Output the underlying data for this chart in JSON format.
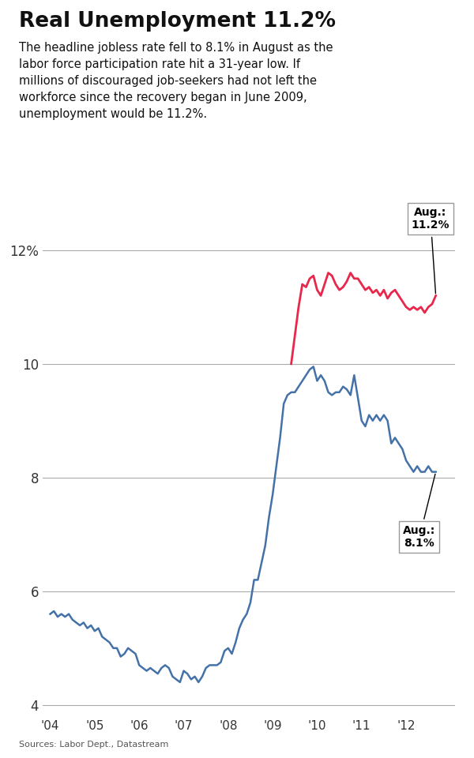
{
  "title": "Real Unemployment 11.2%",
  "subtitle": "The headline jobless rate fell to 8.1% in August as the\nlabor force participation rate hit a 31-year low. If\nmillions of discouraged job-seekers had not left the\nworkforce since the recovery began in June 2009,\nunemployment would be 11.2%.",
  "source": "Sources: Labor Dept., Datastream",
  "ylim": [
    3.8,
    13.0
  ],
  "yticks": [
    4,
    6,
    8,
    10,
    12
  ],
  "ytick_labels": [
    "4",
    "6",
    "8",
    "10",
    "12%"
  ],
  "xlabel_years": [
    "'04",
    "'05",
    "'06",
    "'07",
    "'08",
    "'09",
    "'10",
    "'11",
    "'12"
  ],
  "blue_color": "#4472A8",
  "red_color": "#E8274B",
  "background_color": "#FFFFFF",
  "blue_data": {
    "dates": [
      2004.0,
      2004.083,
      2004.167,
      2004.25,
      2004.333,
      2004.417,
      2004.5,
      2004.583,
      2004.667,
      2004.75,
      2004.833,
      2004.917,
      2005.0,
      2005.083,
      2005.167,
      2005.25,
      2005.333,
      2005.417,
      2005.5,
      2005.583,
      2005.667,
      2005.75,
      2005.833,
      2005.917,
      2006.0,
      2006.083,
      2006.167,
      2006.25,
      2006.333,
      2006.417,
      2006.5,
      2006.583,
      2006.667,
      2006.75,
      2006.833,
      2006.917,
      2007.0,
      2007.083,
      2007.167,
      2007.25,
      2007.333,
      2007.417,
      2007.5,
      2007.583,
      2007.667,
      2007.75,
      2007.833,
      2007.917,
      2008.0,
      2008.083,
      2008.167,
      2008.25,
      2008.333,
      2008.417,
      2008.5,
      2008.583,
      2008.667,
      2008.75,
      2008.833,
      2008.917,
      2009.0,
      2009.083,
      2009.167,
      2009.25,
      2009.333,
      2009.417,
      2009.5,
      2009.583,
      2009.667,
      2009.75,
      2009.833,
      2009.917,
      2010.0,
      2010.083,
      2010.167,
      2010.25,
      2010.333,
      2010.417,
      2010.5,
      2010.583,
      2010.667,
      2010.75,
      2010.833,
      2010.917,
      2011.0,
      2011.083,
      2011.167,
      2011.25,
      2011.333,
      2011.417,
      2011.5,
      2011.583,
      2011.667,
      2011.75,
      2011.833,
      2011.917,
      2012.0,
      2012.083,
      2012.167,
      2012.25,
      2012.333,
      2012.417,
      2012.5,
      2012.583,
      2012.667
    ],
    "values": [
      5.6,
      5.65,
      5.55,
      5.6,
      5.55,
      5.6,
      5.5,
      5.45,
      5.4,
      5.45,
      5.35,
      5.4,
      5.3,
      5.35,
      5.2,
      5.15,
      5.1,
      5.0,
      5.0,
      4.85,
      4.9,
      5.0,
      4.95,
      4.9,
      4.7,
      4.65,
      4.6,
      4.65,
      4.6,
      4.55,
      4.65,
      4.7,
      4.65,
      4.5,
      4.45,
      4.4,
      4.6,
      4.55,
      4.45,
      4.5,
      4.4,
      4.5,
      4.65,
      4.7,
      4.7,
      4.7,
      4.75,
      4.95,
      5.0,
      4.9,
      5.1,
      5.35,
      5.5,
      5.6,
      5.8,
      6.2,
      6.2,
      6.5,
      6.8,
      7.3,
      7.7,
      8.2,
      8.7,
      9.3,
      9.45,
      9.5,
      9.5,
      9.6,
      9.7,
      9.8,
      9.9,
      9.95,
      9.7,
      9.8,
      9.7,
      9.5,
      9.45,
      9.5,
      9.5,
      9.6,
      9.55,
      9.45,
      9.8,
      9.4,
      9.0,
      8.9,
      9.1,
      9.0,
      9.1,
      9.0,
      9.1,
      9.0,
      8.6,
      8.7,
      8.6,
      8.5,
      8.3,
      8.2,
      8.1,
      8.2,
      8.1,
      8.1,
      8.2,
      8.1,
      8.1
    ]
  },
  "red_data": {
    "dates": [
      2009.417,
      2009.5,
      2009.583,
      2009.667,
      2009.75,
      2009.833,
      2009.917,
      2010.0,
      2010.083,
      2010.167,
      2010.25,
      2010.333,
      2010.417,
      2010.5,
      2010.583,
      2010.667,
      2010.75,
      2010.833,
      2010.917,
      2011.0,
      2011.083,
      2011.167,
      2011.25,
      2011.333,
      2011.417,
      2011.5,
      2011.583,
      2011.667,
      2011.75,
      2011.833,
      2011.917,
      2012.0,
      2012.083,
      2012.167,
      2012.25,
      2012.333,
      2012.417,
      2012.5,
      2012.583,
      2012.667
    ],
    "values": [
      10.0,
      10.5,
      11.0,
      11.4,
      11.35,
      11.5,
      11.55,
      11.3,
      11.2,
      11.4,
      11.6,
      11.55,
      11.4,
      11.3,
      11.35,
      11.45,
      11.6,
      11.5,
      11.5,
      11.4,
      11.3,
      11.35,
      11.25,
      11.3,
      11.2,
      11.3,
      11.15,
      11.25,
      11.3,
      11.2,
      11.1,
      11.0,
      10.95,
      11.0,
      10.95,
      11.0,
      10.9,
      11.0,
      11.05,
      11.2
    ]
  }
}
